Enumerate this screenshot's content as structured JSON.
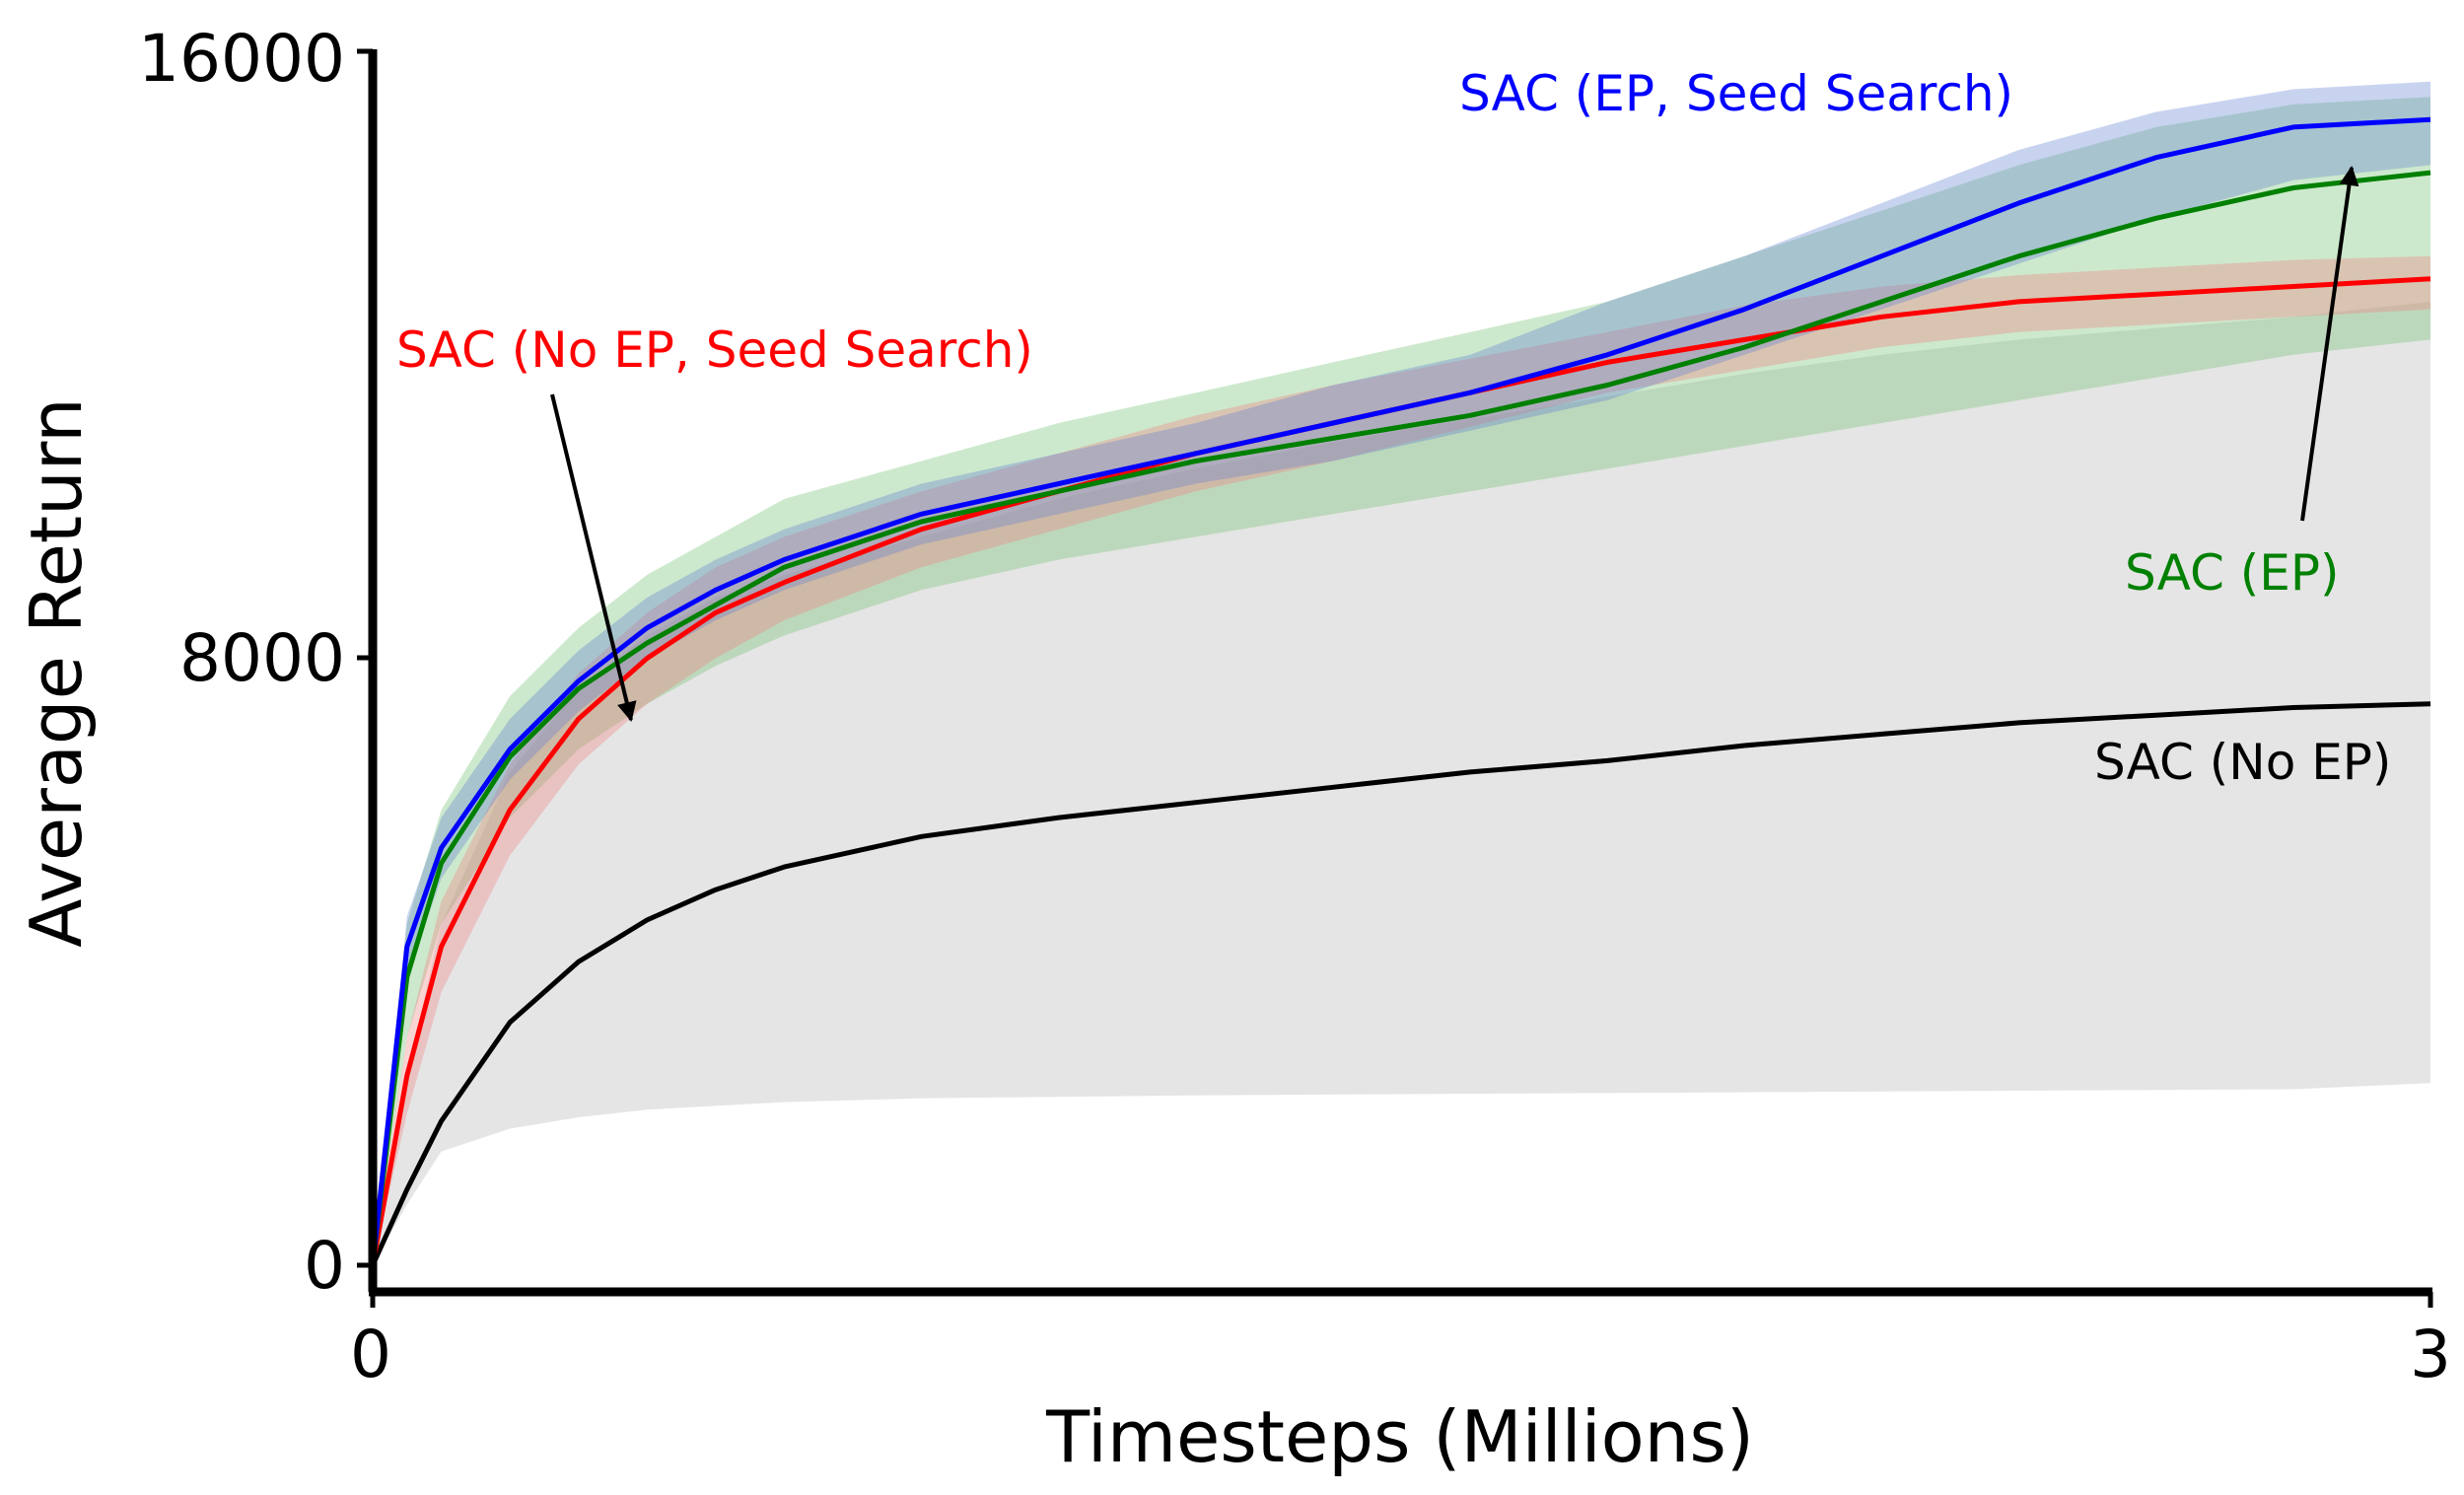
{
  "chart_data": {
    "type": "line",
    "title": "",
    "xlabel": "Timesteps (Millions)",
    "ylabel": "Average Return",
    "xlim": [
      0,
      3
    ],
    "ylim": [
      -400,
      16000
    ],
    "x_ticks": [
      0,
      3
    ],
    "x_tick_labels": [
      "0",
      "3"
    ],
    "y_ticks": [
      0,
      8000,
      16000
    ],
    "y_tick_labels": [
      "0",
      "8000",
      "16000"
    ],
    "grid": false,
    "legend": "none (series labels annotated directly on the plot)",
    "series": [
      {
        "name": "SAC (No EP)",
        "color": "#000000",
        "band_color": "#b4b4b4",
        "x": [
          0,
          0.05,
          0.1,
          0.2,
          0.3,
          0.4,
          0.5,
          0.6,
          0.8,
          1.0,
          1.2,
          1.4,
          1.6,
          1.8,
          2.0,
          2.2,
          2.4,
          2.6,
          2.8,
          3.0
        ],
        "y": [
          0,
          1000,
          1900,
          3200,
          4000,
          4550,
          4950,
          5250,
          5650,
          5900,
          6100,
          6300,
          6500,
          6650,
          6850,
          7000,
          7150,
          7250,
          7350,
          7400
        ],
        "upper": [
          200,
          2500,
          4500,
          6500,
          7600,
          8300,
          8800,
          9100,
          9600,
          10100,
          10500,
          10850,
          11150,
          11450,
          11750,
          12000,
          12200,
          12350,
          12500,
          12700
        ],
        "lower": [
          0,
          800,
          1500,
          1800,
          1950,
          2050,
          2100,
          2150,
          2200,
          2220,
          2240,
          2250,
          2260,
          2270,
          2280,
          2290,
          2300,
          2310,
          2320,
          2400
        ]
      },
      {
        "name": "SAC (No EP, Seed Search)",
        "color": "#ff0000",
        "band_color": "#f08080",
        "x": [
          0,
          0.05,
          0.1,
          0.2,
          0.3,
          0.4,
          0.5,
          0.6,
          0.8,
          1.0,
          1.2,
          1.4,
          1.6,
          1.8,
          2.0,
          2.2,
          2.4,
          2.6,
          2.8,
          3.0
        ],
        "y": [
          0,
          2500,
          4200,
          6000,
          7200,
          8000,
          8600,
          9000,
          9700,
          10200,
          10700,
          11100,
          11500,
          11900,
          12200,
          12500,
          12700,
          12800,
          12900,
          13000
        ],
        "upper": [
          100,
          3000,
          4800,
          6600,
          7800,
          8600,
          9200,
          9600,
          10200,
          10700,
          11200,
          11600,
          11950,
          12300,
          12650,
          12900,
          13050,
          13150,
          13250,
          13300
        ],
        "lower": [
          0,
          2000,
          3600,
          5400,
          6600,
          7400,
          8000,
          8500,
          9200,
          9700,
          10200,
          10600,
          11050,
          11500,
          11800,
          12100,
          12300,
          12400,
          12500,
          12600
        ]
      },
      {
        "name": "SAC (EP, Seed Search)",
        "color": "#0000ff",
        "band_color": "#6080d0",
        "x": [
          0,
          0.05,
          0.1,
          0.2,
          0.3,
          0.4,
          0.5,
          0.6,
          0.8,
          1.0,
          1.2,
          1.4,
          1.6,
          1.8,
          2.0,
          2.2,
          2.4,
          2.6,
          2.8,
          3.0
        ],
        "y": [
          0,
          4200,
          5500,
          6800,
          7700,
          8400,
          8900,
          9300,
          9900,
          10300,
          10700,
          11100,
          11500,
          12000,
          12600,
          13300,
          14000,
          14600,
          15000,
          15100
        ],
        "upper": [
          100,
          4600,
          5900,
          7200,
          8100,
          8800,
          9300,
          9700,
          10300,
          10700,
          11100,
          11600,
          12000,
          12700,
          13300,
          14000,
          14700,
          15200,
          15500,
          15600
        ],
        "lower": [
          0,
          3800,
          5100,
          6400,
          7300,
          8000,
          8500,
          8900,
          9500,
          9900,
          10300,
          10600,
          11000,
          11400,
          12000,
          12600,
          13200,
          13800,
          14300,
          14500
        ]
      },
      {
        "name": "SAC (EP)",
        "color": "#008000",
        "band_color": "#70c070",
        "x": [
          0,
          0.05,
          0.1,
          0.2,
          0.3,
          0.4,
          0.5,
          0.6,
          0.8,
          1.0,
          1.2,
          1.4,
          1.6,
          1.8,
          2.0,
          2.2,
          2.4,
          2.6,
          2.8,
          3.0
        ],
        "y": [
          0,
          3800,
          5300,
          6700,
          7600,
          8200,
          8700,
          9200,
          9800,
          10200,
          10600,
          10900,
          11200,
          11600,
          12100,
          12700,
          13300,
          13800,
          14200,
          14400
        ],
        "upper": [
          100,
          4500,
          6000,
          7500,
          8400,
          9100,
          9600,
          10100,
          10600,
          11100,
          11500,
          11900,
          12300,
          12700,
          13300,
          13900,
          14500,
          15000,
          15300,
          15400
        ],
        "lower": [
          0,
          3000,
          4500,
          5900,
          6800,
          7400,
          7900,
          8300,
          8900,
          9300,
          9600,
          9900,
          10200,
          10500,
          10800,
          11100,
          11400,
          11700,
          12000,
          12200
        ]
      }
    ],
    "annotations": [
      {
        "text": "SAC (EP, Seed Search)",
        "color": "#0000ff"
      },
      {
        "text": "SAC (No EP, Seed Search)",
        "color": "#ff0000",
        "arrow_to": [
          0.38,
          7200
        ]
      },
      {
        "text": "SAC (EP)",
        "color": "#008000",
        "arrow_to": [
          2.9,
          14400
        ]
      },
      {
        "text": "SAC (No EP)",
        "color": "#000000"
      }
    ]
  }
}
